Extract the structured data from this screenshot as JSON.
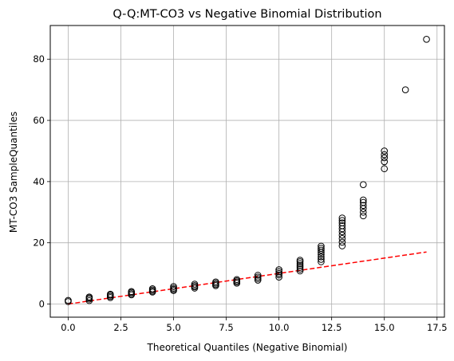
{
  "chart_data": {
    "type": "scatter",
    "title": "Q-Q:MT-CO3 vs Negative Binomial Distribution",
    "xlabel": "Theoretical Quantiles (Negative Binomial)",
    "ylabel": "MT-CO3 SampleQuantiles",
    "xlim": [
      -0.85,
      17.85
    ],
    "ylim": [
      -4.3,
      91
    ],
    "xticks": [
      0.0,
      2.5,
      5.0,
      7.5,
      10.0,
      12.5,
      15.0,
      17.5
    ],
    "xtick_labels": [
      "0.0",
      "2.5",
      "5.0",
      "7.5",
      "10.0",
      "12.5",
      "15.0",
      "17.5"
    ],
    "yticks": [
      0,
      20,
      40,
      60,
      80
    ],
    "ytick_labels": [
      "0",
      "20",
      "40",
      "60",
      "80"
    ],
    "grid": true,
    "colors": {
      "points": "#000000",
      "reference_line": "#ff0000",
      "grid": "#b0b0b0"
    },
    "series": [
      {
        "marker": "open-circle",
        "x": [
          0,
          0,
          1,
          1,
          1,
          1,
          2,
          2,
          2,
          2,
          3,
          3,
          3,
          3,
          4,
          4,
          4,
          4,
          5,
          5,
          5,
          5,
          6,
          6,
          6,
          6,
          7,
          7,
          7,
          7,
          8,
          8,
          8,
          8,
          9,
          9,
          9,
          9,
          10,
          10,
          10,
          10,
          10,
          11,
          11,
          11,
          11,
          11,
          11,
          11,
          12,
          12,
          12,
          12,
          12,
          12,
          12,
          12,
          13,
          13,
          13,
          13,
          13,
          13,
          13,
          13,
          13,
          13,
          14,
          14,
          14,
          14,
          14,
          14,
          14,
          15,
          15,
          15,
          15,
          15,
          16,
          17
        ],
        "y": [
          0.8,
          1.2,
          1.1,
          1.6,
          2.0,
          2.3,
          2.1,
          2.5,
          2.9,
          3.2,
          3.0,
          3.4,
          3.8,
          4.1,
          3.9,
          4.2,
          4.6,
          5.0,
          4.4,
          4.8,
          5.2,
          5.7,
          5.2,
          5.6,
          6.0,
          6.5,
          6.0,
          6.4,
          6.8,
          7.2,
          6.8,
          7.2,
          7.6,
          8.0,
          7.8,
          8.3,
          8.8,
          9.4,
          8.8,
          9.5,
          10.0,
          10.6,
          11.2,
          10.8,
          11.4,
          12.0,
          12.6,
          13.2,
          13.8,
          14.3,
          13.8,
          14.6,
          15.4,
          16.2,
          16.9,
          17.6,
          18.2,
          18.9,
          19.0,
          20.2,
          21.4,
          22.5,
          23.6,
          24.6,
          25.6,
          26.5,
          27.3,
          28.1,
          28.8,
          30.0,
          31.2,
          32.2,
          33.2,
          34.0,
          39.0,
          44.2,
          46.5,
          47.8,
          48.8,
          50.0,
          70.0,
          86.5
        ]
      }
    ],
    "reference_line": {
      "x": [
        0,
        17
      ],
      "y": [
        0,
        17
      ],
      "style": "dashed"
    }
  }
}
